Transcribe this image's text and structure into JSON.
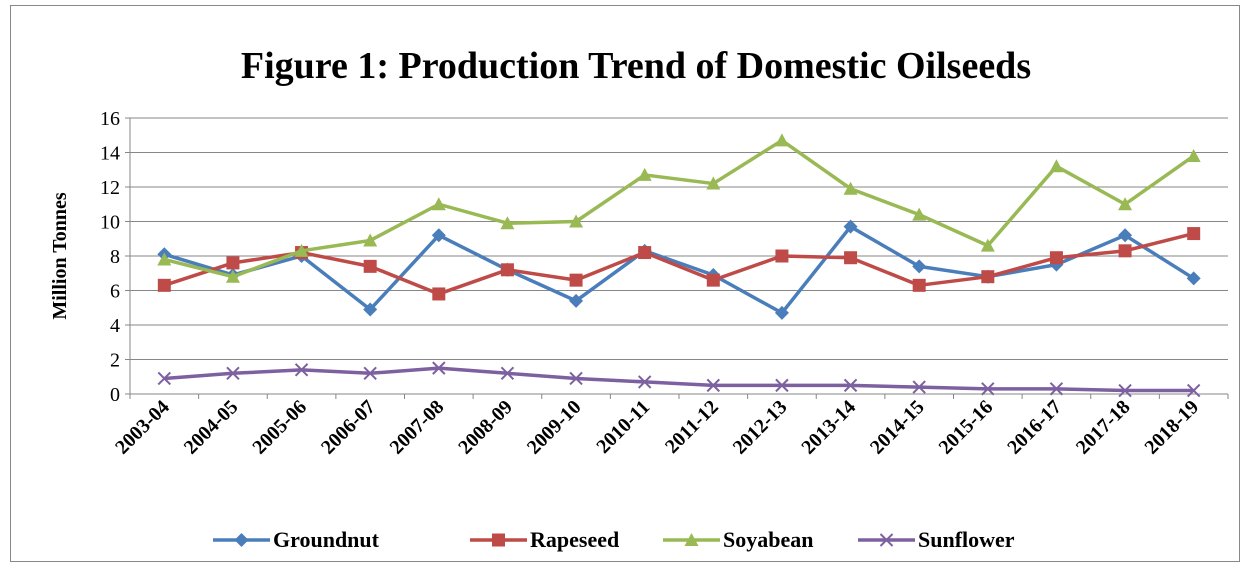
{
  "chart_data": {
    "type": "line",
    "title": "Figure 1: Production Trend of Domestic Oilseeds",
    "y_label": "Million Tonnes",
    "categories": [
      "2003-04",
      "2004-05",
      "2005-06",
      "2006-07",
      "2007-08",
      "2008-09",
      "2009-10",
      "2010-11",
      "2011-12",
      "2012-13",
      "2013-14",
      "2014-15",
      "2015-16",
      "2016-17",
      "2017-18",
      "2018-19"
    ],
    "series": [
      {
        "name": "Groundnut",
        "color": "#4a7ebb",
        "marker": "diamond",
        "values": [
          8.1,
          6.9,
          8.0,
          4.9,
          9.2,
          7.2,
          5.4,
          8.3,
          6.9,
          4.7,
          9.7,
          7.4,
          6.8,
          7.5,
          9.2,
          6.7
        ]
      },
      {
        "name": "Rapeseed",
        "color": "#be4b48",
        "marker": "square",
        "values": [
          6.3,
          7.6,
          8.2,
          7.4,
          5.8,
          7.2,
          6.6,
          8.2,
          6.6,
          8.0,
          7.9,
          6.3,
          6.8,
          7.9,
          8.3,
          9.3
        ]
      },
      {
        "name": "Soyabean",
        "color": "#98b954",
        "marker": "triangle",
        "values": [
          7.8,
          6.8,
          8.3,
          8.9,
          11.0,
          9.9,
          10.0,
          12.7,
          12.2,
          14.7,
          11.9,
          10.4,
          8.6,
          13.2,
          11.0,
          13.8
        ]
      },
      {
        "name": "Sunflower",
        "color": "#7d60a0",
        "marker": "x",
        "values": [
          0.9,
          1.2,
          1.4,
          1.2,
          1.5,
          1.2,
          0.9,
          0.7,
          0.5,
          0.5,
          0.5,
          0.4,
          0.3,
          0.3,
          0.2,
          0.2
        ]
      }
    ],
    "ylim": [
      0,
      16
    ],
    "yticks": [
      0,
      2,
      4,
      6,
      8,
      10,
      12,
      14,
      16
    ],
    "grid": true,
    "legend": "bottom"
  }
}
